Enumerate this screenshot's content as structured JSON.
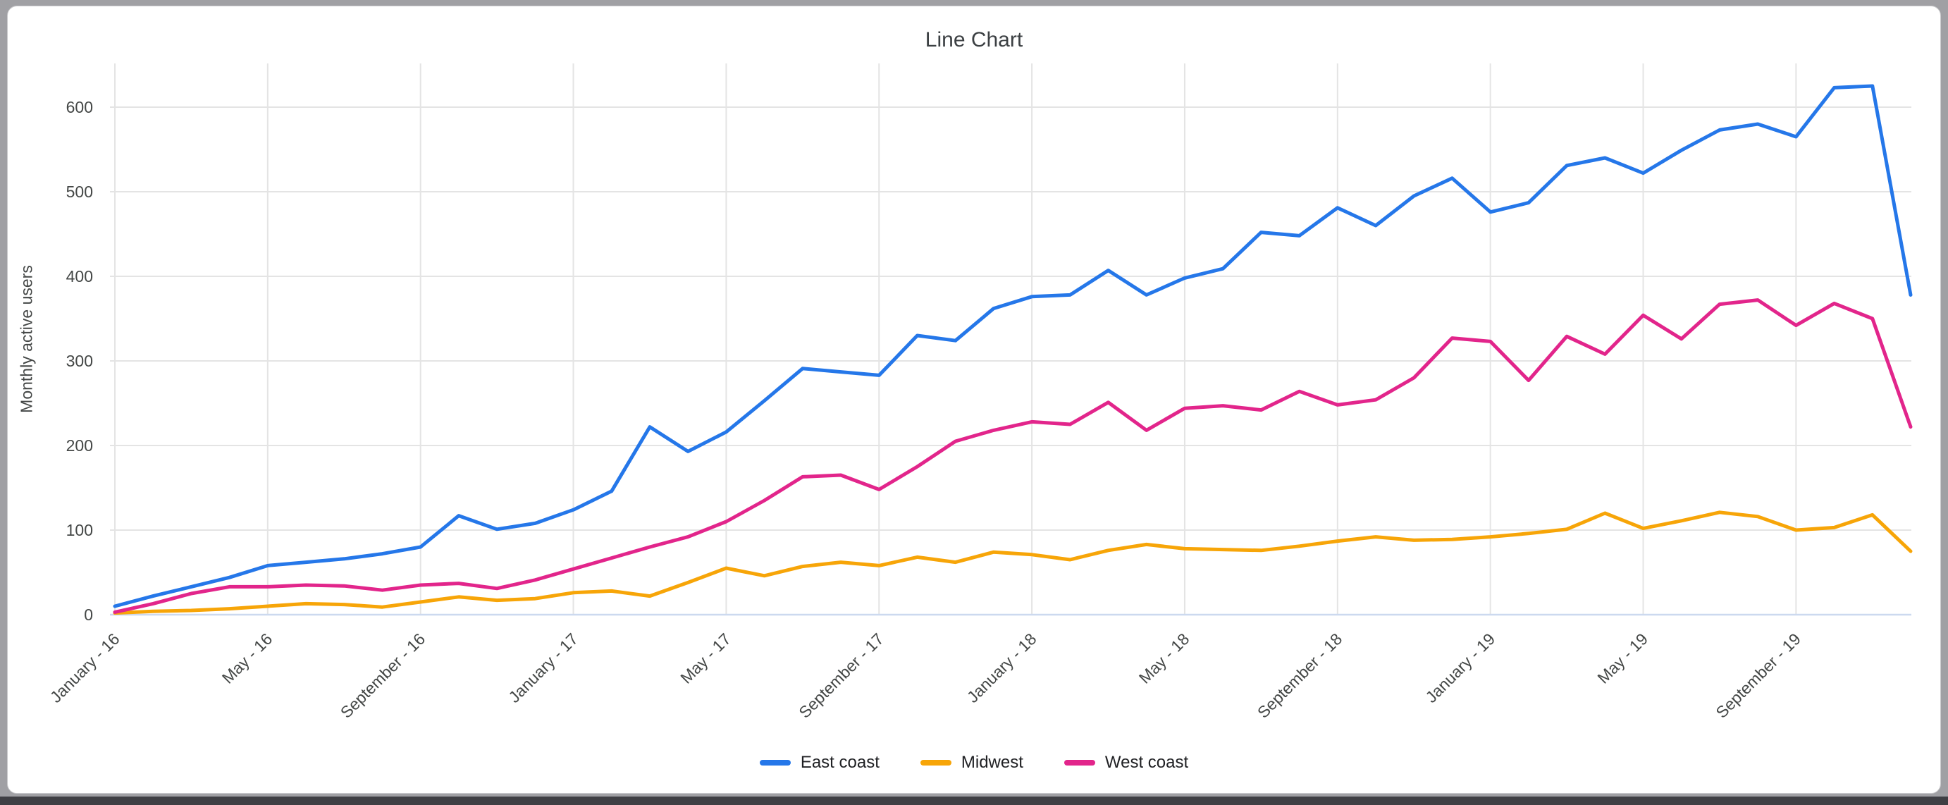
{
  "window": {
    "frame_color": "#a0a0a4",
    "bottom_bar_color": "#3f3f44",
    "card_color": "#ffffff"
  },
  "chart_data": {
    "type": "line",
    "title": "Line Chart",
    "xlabel": "",
    "ylabel": "Monthly active users",
    "ylim": [
      0,
      650
    ],
    "grid": true,
    "legend_position": "bottom-center",
    "y_ticks": [
      0,
      100,
      200,
      300,
      400,
      500,
      600
    ],
    "x_tick_indices": [
      0,
      4,
      8,
      12,
      16,
      20,
      24,
      28,
      32,
      36,
      40,
      44
    ],
    "x_tick_labels": [
      "January - 16",
      "May - 16",
      "September - 16",
      "January - 17",
      "May - 17",
      "September - 17",
      "January - 18",
      "May - 18",
      "September - 18",
      "January - 19",
      "May - 19",
      "September - 19"
    ],
    "months": [
      "2016-01",
      "2016-02",
      "2016-03",
      "2016-04",
      "2016-05",
      "2016-06",
      "2016-07",
      "2016-08",
      "2016-09",
      "2016-10",
      "2016-11",
      "2016-12",
      "2017-01",
      "2017-02",
      "2017-03",
      "2017-04",
      "2017-05",
      "2017-06",
      "2017-07",
      "2017-08",
      "2017-09",
      "2017-10",
      "2017-11",
      "2017-12",
      "2018-01",
      "2018-02",
      "2018-03",
      "2018-04",
      "2018-05",
      "2018-06",
      "2018-07",
      "2018-08",
      "2018-09",
      "2018-10",
      "2018-11",
      "2018-12",
      "2019-01",
      "2019-02",
      "2019-03",
      "2019-04",
      "2019-05",
      "2019-06",
      "2019-07",
      "2019-08",
      "2019-09",
      "2019-10",
      "2019-11",
      "2019-12"
    ],
    "series": [
      {
        "name": "East coast",
        "color": "#2577e9",
        "values": [
          10,
          22,
          33,
          44,
          58,
          62,
          66,
          72,
          80,
          117,
          101,
          108,
          124,
          146,
          222,
          193,
          216,
          253,
          291,
          287,
          283,
          330,
          324,
          362,
          376,
          378,
          407,
          378,
          398,
          409,
          452,
          448,
          481,
          460,
          495,
          516,
          476,
          487,
          531,
          540,
          522,
          549,
          573,
          580,
          565,
          623,
          625,
          378
        ]
      },
      {
        "name": "Midwest",
        "color": "#f7a508",
        "values": [
          2,
          4,
          5,
          7,
          10,
          13,
          12,
          9,
          15,
          21,
          17,
          19,
          26,
          28,
          22,
          38,
          55,
          46,
          57,
          62,
          58,
          68,
          62,
          74,
          71,
          65,
          76,
          83,
          78,
          77,
          76,
          81,
          87,
          92,
          88,
          89,
          92,
          96,
          101,
          120,
          102,
          111,
          121,
          116,
          100,
          103,
          118,
          75
        ]
      },
      {
        "name": "West coast",
        "color": "#e2258b",
        "values": [
          3,
          13,
          25,
          33,
          33,
          35,
          34,
          29,
          35,
          37,
          31,
          41,
          54,
          67,
          80,
          92,
          110,
          135,
          163,
          165,
          148,
          175,
          205,
          218,
          228,
          225,
          251,
          218,
          244,
          247,
          242,
          264,
          248,
          254,
          280,
          327,
          323,
          277,
          329,
          308,
          354,
          326,
          367,
          372,
          342,
          368,
          350,
          222
        ]
      }
    ],
    "style": {
      "gridline_color": "#e4e4e4",
      "baseline_color": "#ccd9ef",
      "tick_label_color": "#444746",
      "title_color": "#3c4043",
      "line_width": 5
    }
  }
}
